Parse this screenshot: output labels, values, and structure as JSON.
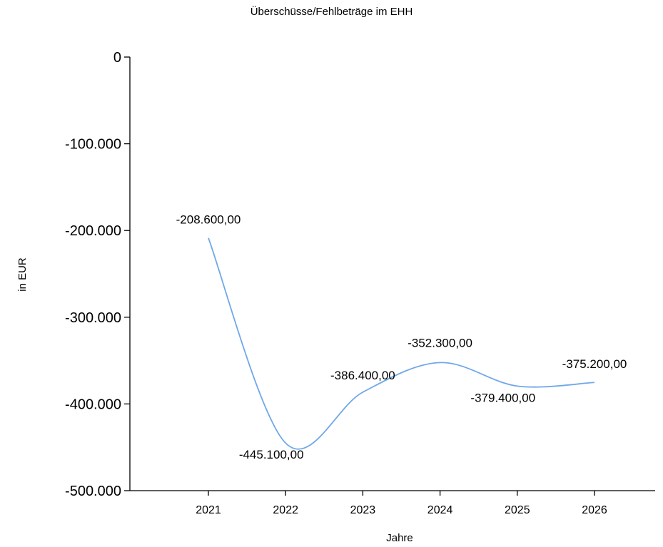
{
  "chart_data": {
    "type": "line",
    "title": "Überschüsse/Fehlbeträge im EHH",
    "xlabel": "Jahre",
    "ylabel": "in EUR",
    "categories": [
      "2021",
      "2022",
      "2023",
      "2024",
      "2025",
      "2026"
    ],
    "series": [
      {
        "values": [
          -208600,
          -445100,
          -386400,
          -352300,
          -379400,
          -375200
        ],
        "data_labels": [
          "-208.600,00",
          "-445.100,00",
          "-386.400,00",
          "-352.300,00",
          "-379.400,00",
          "-375.200,00"
        ],
        "color": "#6fa8e8"
      }
    ],
    "ylim": [
      -500000,
      0
    ],
    "yticks": [
      0,
      -100000,
      -200000,
      -300000,
      -400000,
      -500000
    ],
    "ytick_labels": [
      "0",
      "-100.000",
      "-200.000",
      "-300.000",
      "-400.000",
      "-500.000"
    ],
    "grid": false,
    "smooth": true
  }
}
